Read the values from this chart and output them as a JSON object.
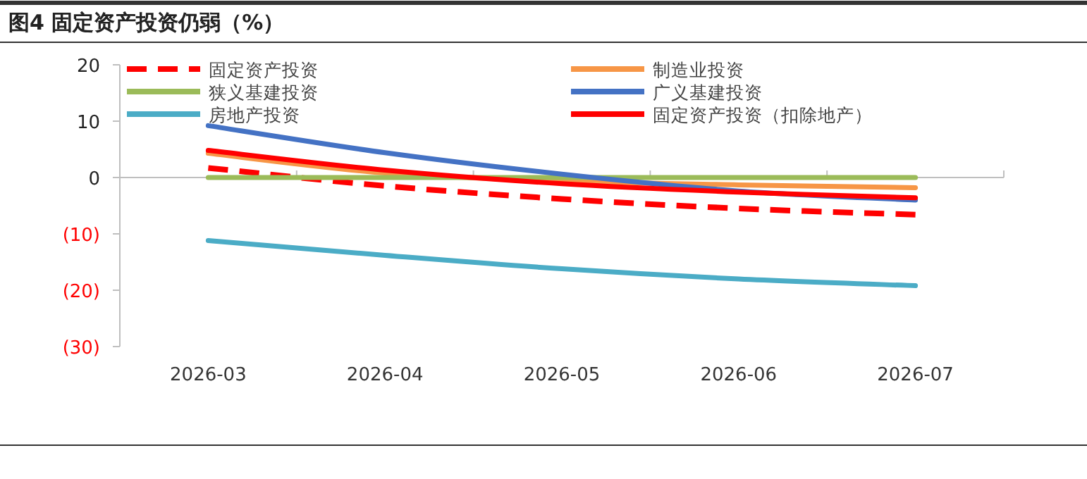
{
  "chart_data": {
    "type": "line",
    "title": "图4  固定资产投资仍弱（%）",
    "categories": [
      "2026-03",
      "2026-04",
      "2026-05",
      "2026-06",
      "2026-07"
    ],
    "series": [
      {
        "name": "固定资产投资",
        "color": "#ff0000",
        "line_style": "dashed",
        "values": [
          1.7,
          -1.5,
          -3.8,
          -5.5,
          -6.6
        ]
      },
      {
        "name": "制造业投资",
        "color": "#f79646",
        "values": [
          4.3,
          0.8,
          -0.6,
          -1.3,
          -1.8
        ]
      },
      {
        "name": "狭义基建投资",
        "color": "#9bbb59",
        "values": [
          0,
          0,
          0,
          0,
          0
        ]
      },
      {
        "name": "广义基建投资",
        "color": "#4472c4",
        "values": [
          9.2,
          4.4,
          0.6,
          -2.4,
          -4.0
        ]
      },
      {
        "name": "房地产投资",
        "color": "#4bacc6",
        "values": [
          -11.2,
          -13.8,
          -16.2,
          -18.0,
          -19.2
        ]
      },
      {
        "name": "固定资产投资（扣除地产）",
        "color": "#ff0000",
        "values": [
          4.8,
          1.3,
          -1.1,
          -2.6,
          -3.6
        ]
      }
    ],
    "ylim": [
      -30,
      20
    ],
    "yticks": [
      {
        "value": -30,
        "label": "(30)"
      },
      {
        "value": -20,
        "label": "(20)"
      },
      {
        "value": -10,
        "label": "(10)"
      },
      0,
      10,
      20
    ],
    "legend": "top",
    "marker": "none",
    "line_style": "solid"
  }
}
